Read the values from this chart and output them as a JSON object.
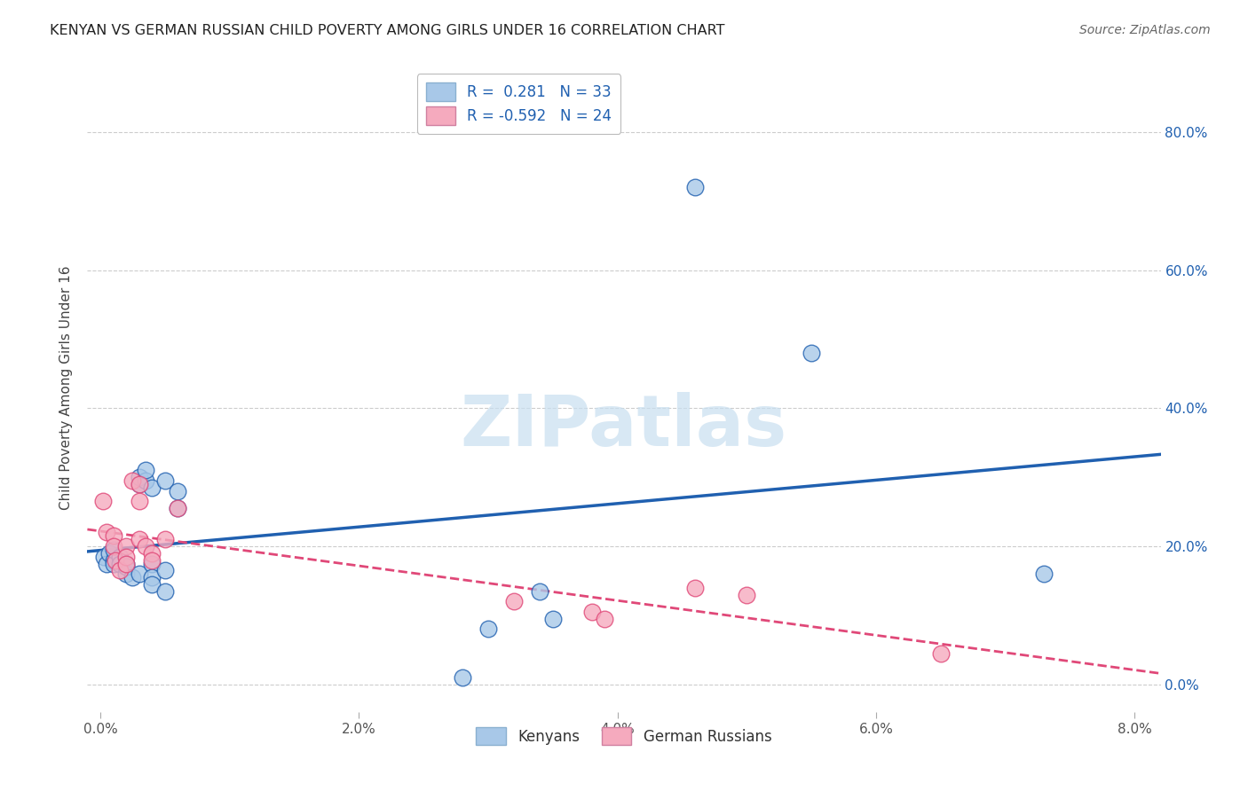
{
  "title": "KENYAN VS GERMAN RUSSIAN CHILD POVERTY AMONG GIRLS UNDER 16 CORRELATION CHART",
  "source": "Source: ZipAtlas.com",
  "xlabel_ticks": [
    "0.0%",
    "2.0%",
    "4.0%",
    "6.0%",
    "8.0%"
  ],
  "xlabel_vals": [
    0.0,
    0.02,
    0.04,
    0.06,
    0.08
  ],
  "ylabel": "Child Poverty Among Girls Under 16",
  "ylabel_ticks": [
    "0.0%",
    "20.0%",
    "40.0%",
    "60.0%",
    "80.0%"
  ],
  "ylabel_vals": [
    0.0,
    0.2,
    0.4,
    0.6,
    0.8
  ],
  "xlim": [
    -0.001,
    0.082
  ],
  "ylim": [
    -0.04,
    0.9
  ],
  "kenyan_R": 0.281,
  "kenyan_N": 33,
  "german_russian_R": -0.592,
  "german_russian_N": 24,
  "kenyan_color": "#a8c8e8",
  "german_russian_color": "#f5aabe",
  "kenyan_line_color": "#2060b0",
  "german_russian_line_color": "#e04878",
  "kenyan_points": [
    [
      0.0003,
      0.185
    ],
    [
      0.0005,
      0.175
    ],
    [
      0.0007,
      0.19
    ],
    [
      0.001,
      0.18
    ],
    [
      0.001,
      0.175
    ],
    [
      0.001,
      0.195
    ],
    [
      0.0015,
      0.185
    ],
    [
      0.0015,
      0.175
    ],
    [
      0.002,
      0.175
    ],
    [
      0.002,
      0.16
    ],
    [
      0.002,
      0.17
    ],
    [
      0.0025,
      0.155
    ],
    [
      0.003,
      0.16
    ],
    [
      0.003,
      0.29
    ],
    [
      0.003,
      0.3
    ],
    [
      0.0035,
      0.295
    ],
    [
      0.0035,
      0.31
    ],
    [
      0.004,
      0.285
    ],
    [
      0.004,
      0.175
    ],
    [
      0.004,
      0.155
    ],
    [
      0.004,
      0.145
    ],
    [
      0.005,
      0.135
    ],
    [
      0.005,
      0.165
    ],
    [
      0.005,
      0.295
    ],
    [
      0.006,
      0.255
    ],
    [
      0.006,
      0.28
    ],
    [
      0.028,
      0.01
    ],
    [
      0.03,
      0.08
    ],
    [
      0.034,
      0.135
    ],
    [
      0.035,
      0.095
    ],
    [
      0.046,
      0.72
    ],
    [
      0.055,
      0.48
    ],
    [
      0.073,
      0.16
    ]
  ],
  "german_russian_points": [
    [
      0.0002,
      0.265
    ],
    [
      0.0005,
      0.22
    ],
    [
      0.001,
      0.215
    ],
    [
      0.001,
      0.2
    ],
    [
      0.0012,
      0.18
    ],
    [
      0.0015,
      0.165
    ],
    [
      0.002,
      0.2
    ],
    [
      0.002,
      0.185
    ],
    [
      0.002,
      0.175
    ],
    [
      0.0025,
      0.295
    ],
    [
      0.003,
      0.29
    ],
    [
      0.003,
      0.265
    ],
    [
      0.003,
      0.21
    ],
    [
      0.0035,
      0.2
    ],
    [
      0.004,
      0.19
    ],
    [
      0.004,
      0.18
    ],
    [
      0.005,
      0.21
    ],
    [
      0.006,
      0.255
    ],
    [
      0.032,
      0.12
    ],
    [
      0.038,
      0.105
    ],
    [
      0.039,
      0.095
    ],
    [
      0.046,
      0.14
    ],
    [
      0.05,
      0.13
    ],
    [
      0.065,
      0.045
    ]
  ],
  "watermark_text": "ZIPatlas",
  "watermark_color": "#c8dff0",
  "background_color": "#ffffff",
  "grid_color": "#cccccc"
}
